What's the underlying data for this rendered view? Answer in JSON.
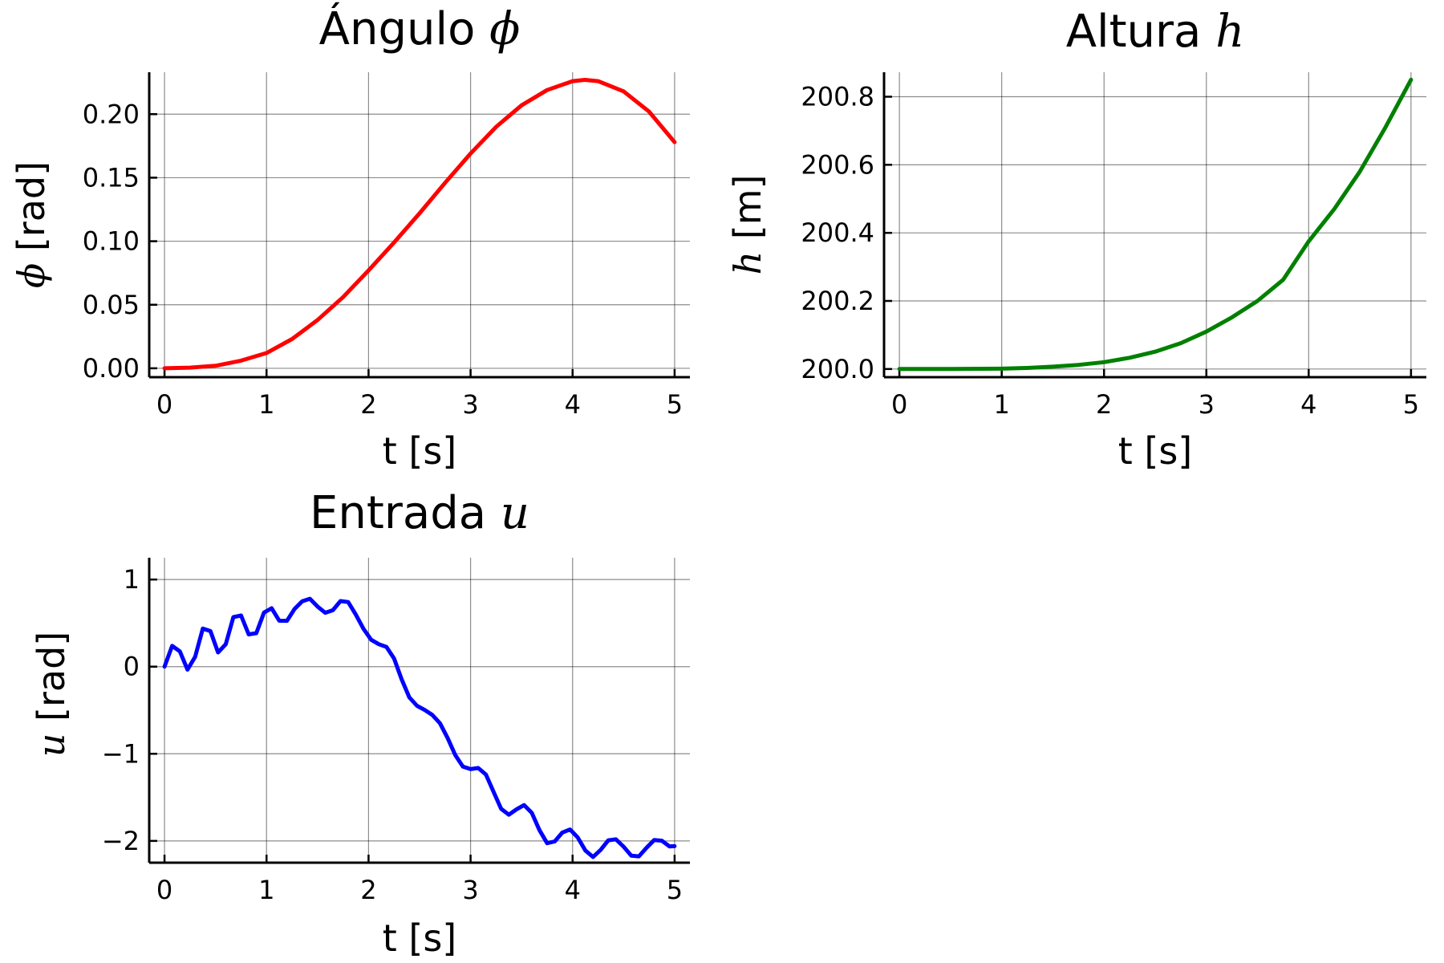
{
  "chart_data": [
    {
      "type": "line",
      "title": "Ángulo",
      "title_symbol": "ϕ",
      "xlabel": "t [s]",
      "ylabel": "[rad]",
      "ylabel_symbol": "ϕ",
      "xlim": [
        -0.15,
        5.15
      ],
      "ylim": [
        -0.007,
        0.233
      ],
      "xticks": [
        0,
        1,
        2,
        3,
        4,
        5
      ],
      "xtick_labels": [
        "0",
        "1",
        "2",
        "3",
        "4",
        "5"
      ],
      "yticks": [
        0.0,
        0.05,
        0.1,
        0.15,
        0.2
      ],
      "ytick_labels": [
        "0.00",
        "0.05",
        "0.10",
        "0.15",
        "0.20"
      ],
      "grid": true,
      "color": "#ff0000",
      "series": [
        {
          "x": [
            0,
            0.25,
            0.5,
            0.75,
            1.0,
            1.25,
            1.5,
            1.75,
            2.0,
            2.25,
            2.5,
            2.75,
            3.0,
            3.25,
            3.5,
            3.75,
            4.0,
            4.12,
            4.25,
            4.5,
            4.75,
            5.0
          ],
          "y": [
            0.0,
            0.0005,
            0.002,
            0.006,
            0.012,
            0.023,
            0.038,
            0.056,
            0.077,
            0.099,
            0.122,
            0.146,
            0.169,
            0.19,
            0.207,
            0.219,
            0.226,
            0.227,
            0.226,
            0.218,
            0.202,
            0.178
          ]
        }
      ]
    },
    {
      "type": "line",
      "title": "Altura",
      "title_symbol": "h",
      "xlabel": "t [s]",
      "ylabel": "[m]",
      "ylabel_symbol": "h",
      "xlim": [
        -0.15,
        5.15
      ],
      "ylim": [
        199.976,
        200.872
      ],
      "xticks": [
        0,
        1,
        2,
        3,
        4,
        5
      ],
      "xtick_labels": [
        "0",
        "1",
        "2",
        "3",
        "4",
        "5"
      ],
      "yticks": [
        200.0,
        200.2,
        200.4,
        200.6,
        200.8
      ],
      "ytick_labels": [
        "200.0",
        "200.2",
        "200.4",
        "200.6",
        "200.8"
      ],
      "grid": true,
      "color": "#008000",
      "series": [
        {
          "x": [
            0,
            0.5,
            1.0,
            1.25,
            1.5,
            1.75,
            2.0,
            2.25,
            2.5,
            2.75,
            3.0,
            3.25,
            3.5,
            3.75,
            4.0,
            4.25,
            4.5,
            4.75,
            5.0
          ],
          "y": [
            200.0,
            200.0,
            200.001,
            200.003,
            200.007,
            200.012,
            200.02,
            200.033,
            200.051,
            200.076,
            200.11,
            200.152,
            200.2,
            200.262,
            200.375,
            200.47,
            200.58,
            200.71,
            200.85
          ]
        }
      ]
    },
    {
      "type": "line",
      "title": "Entrada",
      "title_symbol": "u",
      "xlabel": "t [s]",
      "ylabel": "[rad]",
      "ylabel_symbol": "u",
      "xlim": [
        -0.15,
        5.15
      ],
      "ylim": [
        -2.25,
        1.25
      ],
      "xticks": [
        0,
        1,
        2,
        3,
        4,
        5
      ],
      "xtick_labels": [
        "0",
        "1",
        "2",
        "3",
        "4",
        "5"
      ],
      "yticks": [
        -2,
        -1,
        0,
        1
      ],
      "ytick_labels": [
        "−2",
        "−1",
        "0",
        "1"
      ],
      "grid": true,
      "color": "#0000ff",
      "series": [
        {
          "x": [
            0,
            0.075,
            0.15,
            0.225,
            0.3,
            0.375,
            0.45,
            0.525,
            0.6,
            0.675,
            0.75,
            0.825,
            0.9,
            0.975,
            1.05,
            1.125,
            1.2,
            1.275,
            1.35,
            1.425,
            1.5,
            1.575,
            1.65,
            1.725,
            1.8,
            1.875,
            1.95,
            2.025,
            2.1,
            2.175,
            2.25,
            2.325,
            2.4,
            2.475,
            2.55,
            2.625,
            2.7,
            2.775,
            2.85,
            2.925,
            3.0,
            3.075,
            3.15,
            3.225,
            3.3,
            3.375,
            3.45,
            3.525,
            3.6,
            3.675,
            3.75,
            3.825,
            3.9,
            3.975,
            4.05,
            4.125,
            4.2,
            4.275,
            4.35,
            4.425,
            4.5,
            4.575,
            4.65,
            4.725,
            4.8,
            4.875,
            4.95,
            5.0
          ],
          "y": [
            0.0,
            0.239,
            0.175,
            -0.034,
            0.112,
            0.437,
            0.408,
            0.163,
            0.257,
            0.569,
            0.587,
            0.37,
            0.384,
            0.621,
            0.671,
            0.527,
            0.526,
            0.662,
            0.751,
            0.779,
            0.69,
            0.618,
            0.648,
            0.753,
            0.742,
            0.598,
            0.434,
            0.309,
            0.258,
            0.227,
            0.094,
            -0.146,
            -0.354,
            -0.449,
            -0.497,
            -0.554,
            -0.649,
            -0.82,
            -1.015,
            -1.147,
            -1.176,
            -1.163,
            -1.238,
            -1.436,
            -1.632,
            -1.699,
            -1.638,
            -1.589,
            -1.678,
            -1.875,
            -2.026,
            -2.006,
            -1.904,
            -1.869,
            -1.96,
            -2.11,
            -2.185,
            -2.104,
            -1.993,
            -1.982,
            -2.066,
            -2.169,
            -2.177,
            -2.078,
            -1.99,
            -1.998,
            -2.064,
            -2.06
          ]
        }
      ]
    }
  ]
}
